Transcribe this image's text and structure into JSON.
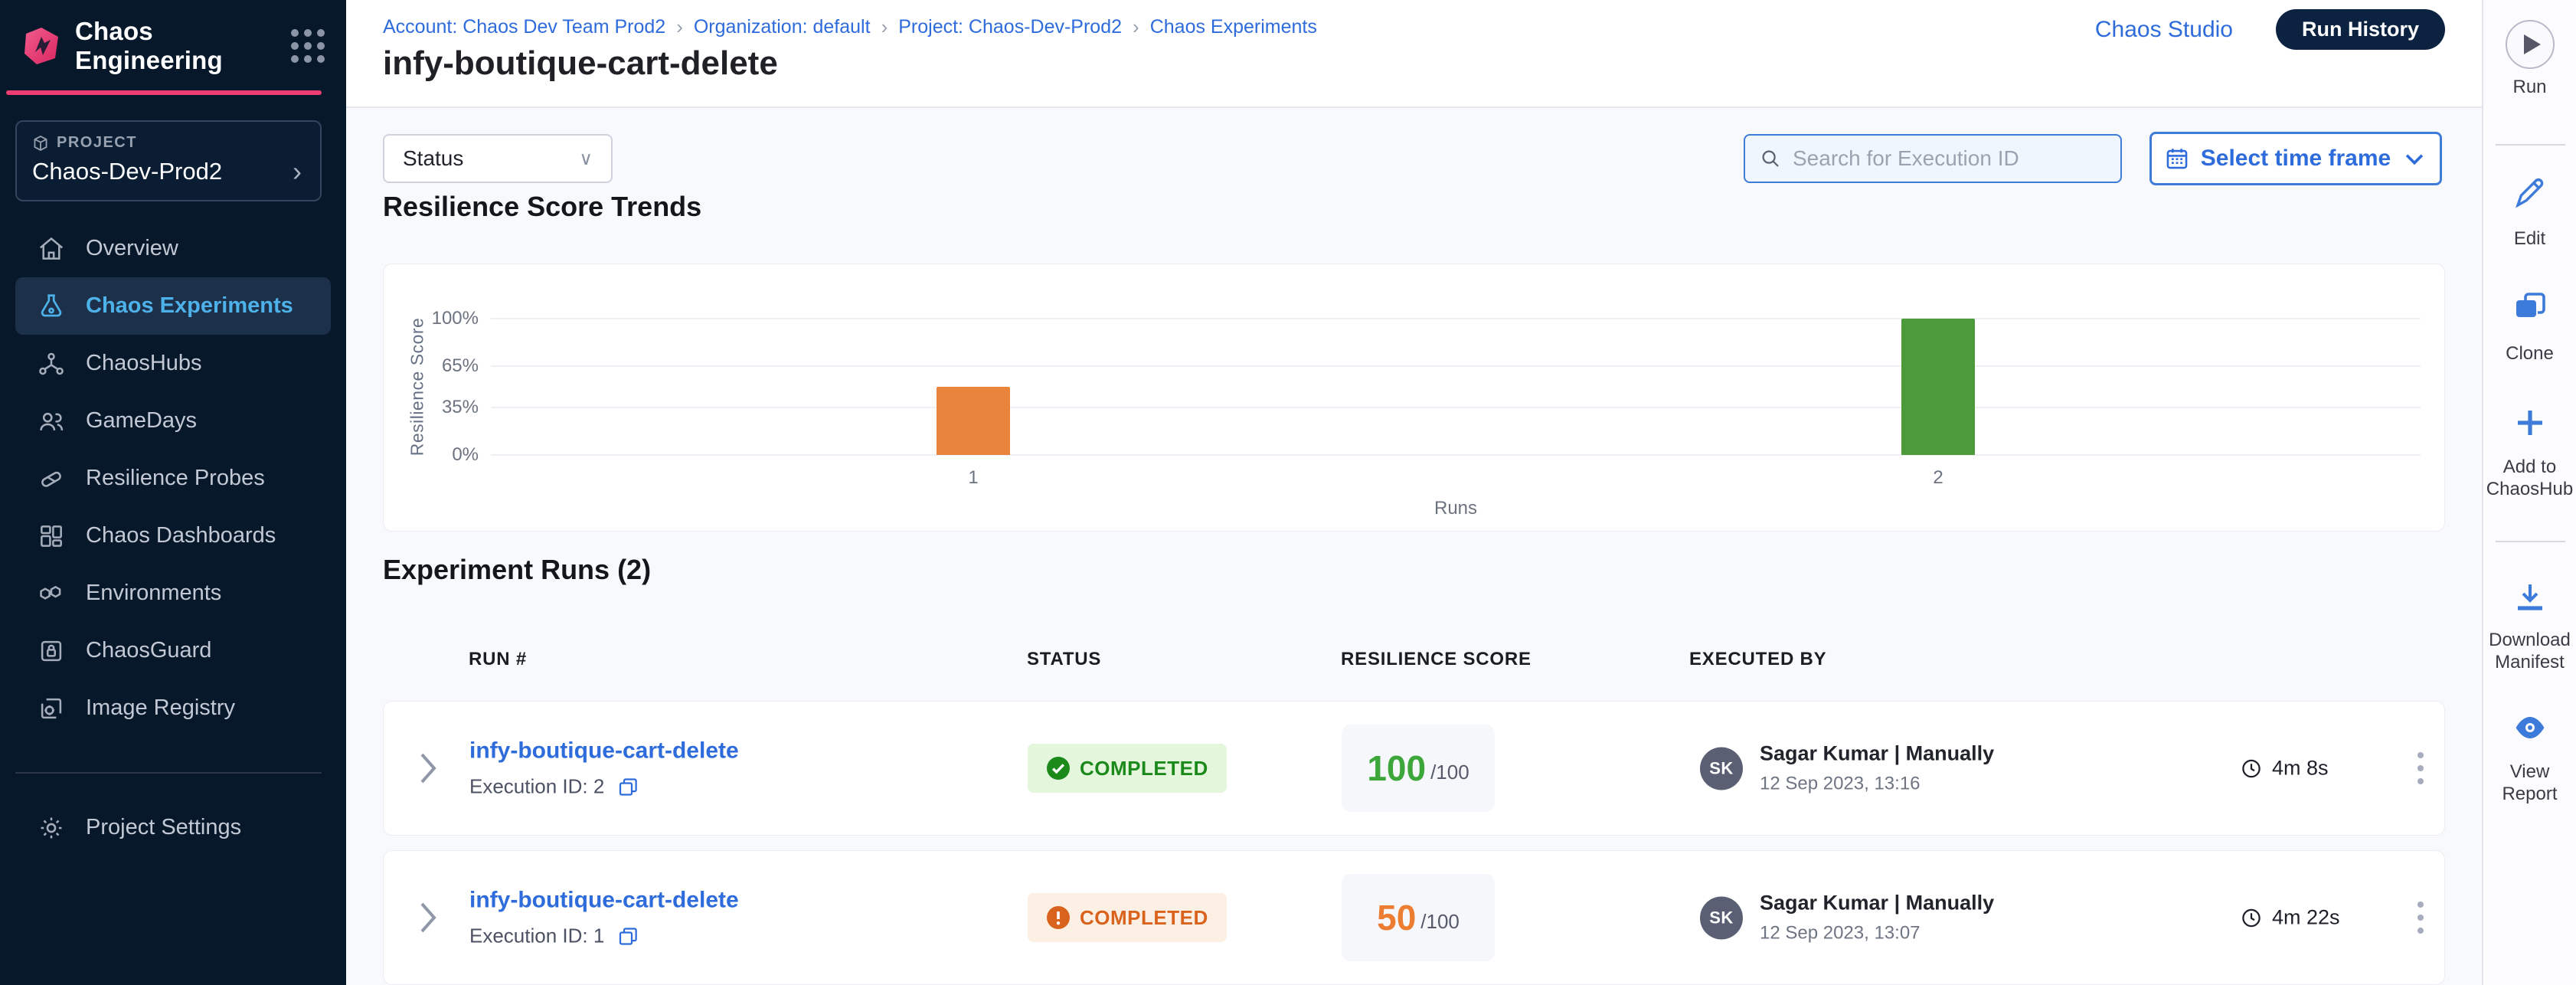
{
  "colors": {
    "navy": "#07182B",
    "accent_blue": "#2E6BDB",
    "border_blue": "#3F7CD8",
    "pink": "#EE3D72",
    "sidebar_active_bg": "#1D3049",
    "sidebar_active_text": "#4DB1EA",
    "sidebar_text": "#C3C9D4",
    "content_bg": "#F8F9FC",
    "success_text": "#1B8A1B",
    "success_bg": "#E4F7DD",
    "warning_text": "#D9631D",
    "warning_bg": "#FCEFE3",
    "score_green": "#3DA63B",
    "score_orange": "#ED7D31"
  },
  "sidebar": {
    "brand": "Chaos Engineering",
    "project_label": "PROJECT",
    "project_name": "Chaos-Dev-Prod2",
    "items": [
      {
        "label": "Overview"
      },
      {
        "label": "Chaos Experiments"
      },
      {
        "label": "ChaosHubs"
      },
      {
        "label": "GameDays"
      },
      {
        "label": "Resilience Probes"
      },
      {
        "label": "Chaos Dashboards"
      },
      {
        "label": "Environments"
      },
      {
        "label": "ChaosGuard"
      },
      {
        "label": "Image Registry"
      }
    ],
    "settings_label": "Project Settings"
  },
  "header": {
    "breadcrumbs": {
      "0": "Account: Chaos Dev Team Prod2",
      "1": "Organization: default",
      "2": "Project: Chaos-Dev-Prod2",
      "3": "Chaos Experiments"
    },
    "title": "infy-boutique-cart-delete",
    "chaos_studio_label": "Chaos Studio",
    "run_history_label": "Run History"
  },
  "toolbar": {
    "run_label": "Run",
    "edit_label": "Edit",
    "clone_label": "Clone",
    "add_to_chaoshub_label": "Add to ChaosHub",
    "download_manifest_label": "Download Manifest",
    "view_report_label": "View Report"
  },
  "filters": {
    "status_label": "Status",
    "search_placeholder": "Search for Execution ID",
    "time_frame_label": "Select time frame"
  },
  "sections": {
    "trends_title": "Resilience Score Trends",
    "runs_title": "Experiment Runs (2)"
  },
  "chart_data": {
    "type": "bar",
    "title": "Resilience Score Trends",
    "xlabel": "Runs",
    "ylabel": "Resilience Score",
    "x": [
      "1",
      "2"
    ],
    "values": [
      50,
      100
    ],
    "bar_colors": [
      "#E8843C",
      "#4C9B3B"
    ],
    "bar_centers_pct": [
      25,
      75
    ],
    "ylim": [
      0,
      100
    ],
    "yticks": [
      {
        "value": 0,
        "label": "0%"
      },
      {
        "value": 35,
        "label": "35%"
      },
      {
        "value": 65,
        "label": "65%"
      },
      {
        "value": 100,
        "label": "100%"
      }
    ],
    "grid": true,
    "legend": false
  },
  "runs_table": {
    "columns": {
      "0": "RUN #",
      "1": "STATUS",
      "2": "RESILIENCE SCORE",
      "3": "EXECUTED BY"
    },
    "avatar_initials": "SK",
    "rows": {
      "0": {
        "name": "infy-boutique-cart-delete",
        "execution_id": "Execution ID: 2",
        "status": "COMPLETED",
        "score": "100",
        "score_suffix": "/100",
        "user": "Sagar Kumar | Manually",
        "date": "12 Sep 2023, 13:16",
        "duration": "4m 8s"
      },
      "1": {
        "name": "infy-boutique-cart-delete",
        "execution_id": "Execution ID: 1",
        "status": "COMPLETED",
        "score": "50",
        "score_suffix": "/100",
        "user": "Sagar Kumar | Manually",
        "date": "12 Sep 2023, 13:07",
        "duration": "4m 22s"
      }
    }
  }
}
